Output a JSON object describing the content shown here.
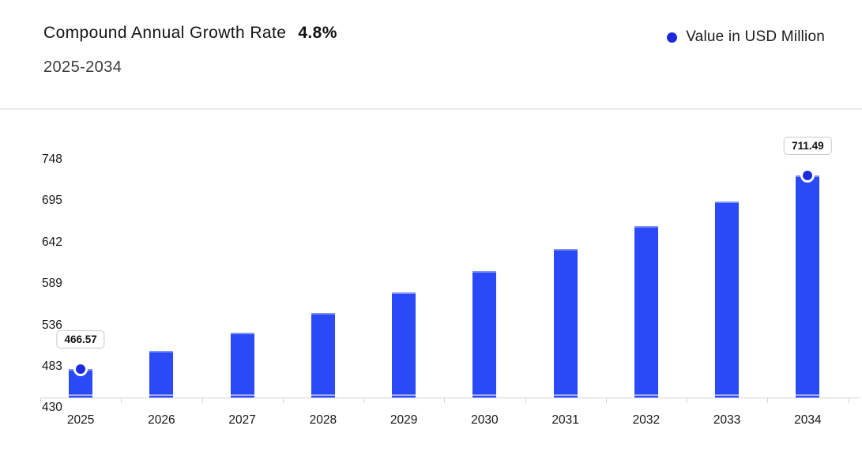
{
  "header": {
    "title": "Compound Annual Growth Rate",
    "cagr_value": "4.8%",
    "subtitle": "2025-2034",
    "legend": {
      "label": "Value in USD Million",
      "dot_color": "#1c2ae0"
    }
  },
  "chart_data": {
    "type": "bar",
    "title": "Compound Annual Growth Rate 4.8%",
    "subtitle": "2025-2034",
    "legend_entries": [
      "Value in USD Million"
    ],
    "legend_position": "top-right",
    "unit": "USD Million",
    "categories": [
      "2025",
      "2026",
      "2027",
      "2028",
      "2029",
      "2030",
      "2031",
      "2032",
      "2033",
      "2034"
    ],
    "values": [
      466.57,
      488.97,
      512.44,
      537.03,
      562.81,
      589.83,
      618.14,
      647.81,
      678.9,
      711.49
    ],
    "y_ticks": [
      430,
      483,
      536,
      589,
      642,
      695,
      748
    ],
    "ylim": [
      430,
      760
    ],
    "xlabel": "",
    "ylabel": "",
    "grid": false,
    "bar_color": "#2a4af7",
    "marker_color": "#1c2ae0",
    "axis_color": "#d6d6d6",
    "data_labels": [
      {
        "index": 0,
        "text": "466.57"
      },
      {
        "index": 9,
        "text": "711.49"
      }
    ]
  }
}
